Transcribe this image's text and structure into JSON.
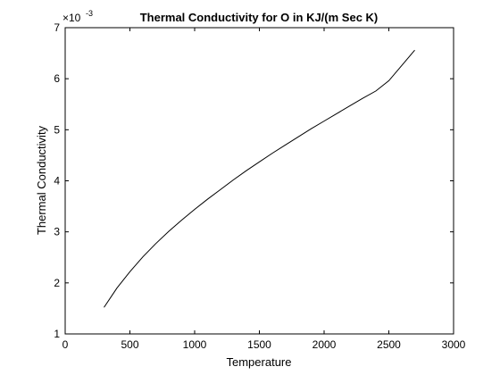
{
  "chart_data": {
    "type": "line",
    "title": "Thermal Conductivity for O in KJ/(m Sec K)",
    "xlabel": "Temperature",
    "ylabel": "Thermal Conductivity",
    "y_exponent_label": "×10",
    "y_exponent_power": "-3",
    "xlim": [
      0,
      3000
    ],
    "ylim": [
      1,
      7
    ],
    "x_ticks": [
      0,
      500,
      1000,
      1500,
      2000,
      2500,
      3000
    ],
    "x_tick_labels": [
      "0",
      "500",
      "1000",
      "1500",
      "2000",
      "2500",
      "3000"
    ],
    "y_ticks": [
      1,
      2,
      3,
      4,
      5,
      6,
      7
    ],
    "y_tick_labels": [
      "1",
      "2",
      "3",
      "4",
      "5",
      "6",
      "7"
    ],
    "grid": false,
    "line_color": "#000000",
    "series": [
      {
        "x": [
          300,
          400,
          500,
          600,
          700,
          800,
          900,
          1000,
          1100,
          1200,
          1300,
          1400,
          1500,
          1600,
          1700,
          1800,
          1900,
          2000,
          2100,
          2200,
          2300,
          2400,
          2500,
          2600,
          2700
        ],
        "y": [
          1.52,
          1.9,
          2.22,
          2.51,
          2.77,
          3.01,
          3.23,
          3.44,
          3.64,
          3.83,
          4.02,
          4.2,
          4.37,
          4.54,
          4.7,
          4.86,
          5.02,
          5.17,
          5.32,
          5.47,
          5.62,
          5.76,
          5.96,
          6.26,
          6.56
        ]
      }
    ]
  }
}
